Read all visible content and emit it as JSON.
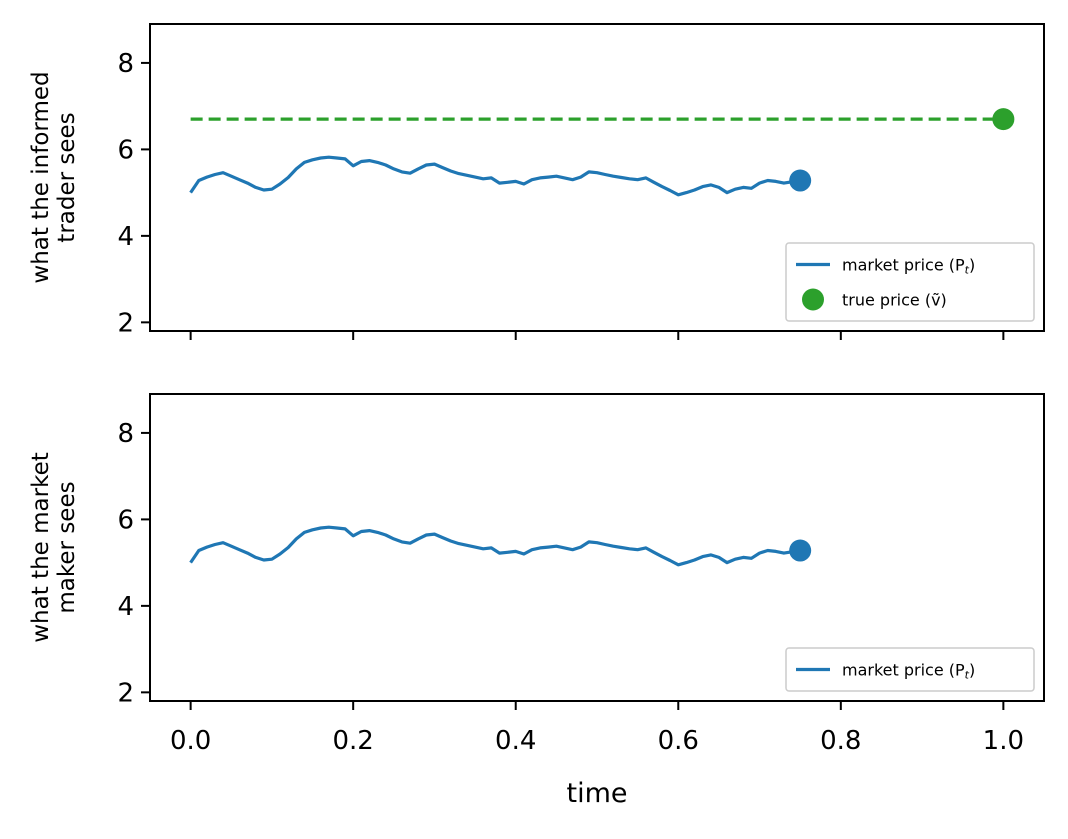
{
  "chart_data": [
    {
      "type": "line",
      "panel": "top",
      "ylabel_lines": [
        "what the informed",
        "trader sees"
      ],
      "xlabel": "",
      "ylim": [
        1.8,
        8.9
      ],
      "xlim": [
        -0.05,
        1.05
      ],
      "yticks": [
        2,
        4,
        6,
        8
      ],
      "ytick_labels": [
        "2",
        "4",
        "6",
        "8"
      ],
      "xticks": [
        0.0,
        0.2,
        0.4,
        0.6,
        0.8,
        1.0
      ],
      "xtick_labels": [],
      "grid": false,
      "legend_placement": "lower right",
      "colors": {
        "market": "#1f77b4",
        "true": "#2ca02c"
      },
      "series": [
        {
          "name": "market price (P_t)",
          "kind": "line",
          "x": [
            0.0,
            0.01,
            0.02,
            0.03,
            0.04,
            0.05,
            0.06,
            0.07,
            0.08,
            0.09,
            0.1,
            0.11,
            0.12,
            0.13,
            0.14,
            0.15,
            0.16,
            0.17,
            0.18,
            0.19,
            0.2,
            0.21,
            0.22,
            0.23,
            0.24,
            0.25,
            0.26,
            0.27,
            0.28,
            0.29,
            0.3,
            0.31,
            0.32,
            0.33,
            0.34,
            0.35,
            0.36,
            0.37,
            0.38,
            0.39,
            0.4,
            0.41,
            0.42,
            0.43,
            0.44,
            0.45,
            0.46,
            0.47,
            0.48,
            0.49,
            0.5,
            0.51,
            0.52,
            0.53,
            0.54,
            0.55,
            0.56,
            0.57,
            0.58,
            0.59,
            0.6,
            0.61,
            0.62,
            0.63,
            0.64,
            0.65,
            0.66,
            0.67,
            0.68,
            0.69,
            0.7,
            0.71,
            0.72,
            0.73,
            0.74,
            0.75
          ],
          "y": [
            5.0,
            5.28,
            5.36,
            5.42,
            5.46,
            5.38,
            5.3,
            5.22,
            5.12,
            5.06,
            5.08,
            5.2,
            5.35,
            5.55,
            5.7,
            5.76,
            5.8,
            5.82,
            5.8,
            5.78,
            5.62,
            5.72,
            5.74,
            5.7,
            5.64,
            5.55,
            5.48,
            5.45,
            5.55,
            5.64,
            5.66,
            5.58,
            5.5,
            5.44,
            5.4,
            5.36,
            5.32,
            5.34,
            5.22,
            5.24,
            5.26,
            5.2,
            5.3,
            5.34,
            5.36,
            5.38,
            5.34,
            5.3,
            5.36,
            5.48,
            5.46,
            5.42,
            5.38,
            5.35,
            5.32,
            5.3,
            5.34,
            5.24,
            5.14,
            5.05,
            4.95,
            5.0,
            5.06,
            5.14,
            5.18,
            5.12,
            5.0,
            5.08,
            5.12,
            5.1,
            5.22,
            5.28,
            5.26,
            5.22,
            5.25,
            5.28
          ]
        },
        {
          "name": "market price end",
          "kind": "marker",
          "x": [
            0.75
          ],
          "y": [
            5.28
          ]
        },
        {
          "name": "true price dashed",
          "kind": "dashed",
          "x": [
            0.0,
            1.0
          ],
          "y": [
            6.7,
            6.7
          ]
        },
        {
          "name": "true price (ṽ)",
          "kind": "marker",
          "x": [
            1.0
          ],
          "y": [
            6.7
          ]
        }
      ],
      "legend": [
        {
          "label": "market price (P",
          "sub": "t",
          "close": ")",
          "kind": "line",
          "color": "#1f77b4"
        },
        {
          "label": "true price (ṽ)",
          "kind": "marker",
          "color": "#2ca02c"
        }
      ]
    },
    {
      "type": "line",
      "panel": "bottom",
      "ylabel_lines": [
        "what the market",
        "maker sees"
      ],
      "xlabel": "time",
      "ylim": [
        1.8,
        8.9
      ],
      "xlim": [
        -0.05,
        1.05
      ],
      "yticks": [
        2,
        4,
        6,
        8
      ],
      "ytick_labels": [
        "2",
        "4",
        "6",
        "8"
      ],
      "xticks": [
        0.0,
        0.2,
        0.4,
        0.6,
        0.8,
        1.0
      ],
      "xtick_labels": [
        "0.0",
        "0.2",
        "0.4",
        "0.6",
        "0.8",
        "1.0"
      ],
      "grid": false,
      "legend_placement": "lower right",
      "colors": {
        "market": "#1f77b4"
      },
      "series": [
        {
          "name": "market price (P_t)",
          "kind": "line",
          "x": [
            0.0,
            0.01,
            0.02,
            0.03,
            0.04,
            0.05,
            0.06,
            0.07,
            0.08,
            0.09,
            0.1,
            0.11,
            0.12,
            0.13,
            0.14,
            0.15,
            0.16,
            0.17,
            0.18,
            0.19,
            0.2,
            0.21,
            0.22,
            0.23,
            0.24,
            0.25,
            0.26,
            0.27,
            0.28,
            0.29,
            0.3,
            0.31,
            0.32,
            0.33,
            0.34,
            0.35,
            0.36,
            0.37,
            0.38,
            0.39,
            0.4,
            0.41,
            0.42,
            0.43,
            0.44,
            0.45,
            0.46,
            0.47,
            0.48,
            0.49,
            0.5,
            0.51,
            0.52,
            0.53,
            0.54,
            0.55,
            0.56,
            0.57,
            0.58,
            0.59,
            0.6,
            0.61,
            0.62,
            0.63,
            0.64,
            0.65,
            0.66,
            0.67,
            0.68,
            0.69,
            0.7,
            0.71,
            0.72,
            0.73,
            0.74,
            0.75
          ],
          "y": [
            5.0,
            5.28,
            5.36,
            5.42,
            5.46,
            5.38,
            5.3,
            5.22,
            5.12,
            5.06,
            5.08,
            5.2,
            5.35,
            5.55,
            5.7,
            5.76,
            5.8,
            5.82,
            5.8,
            5.78,
            5.62,
            5.72,
            5.74,
            5.7,
            5.64,
            5.55,
            5.48,
            5.45,
            5.55,
            5.64,
            5.66,
            5.58,
            5.5,
            5.44,
            5.4,
            5.36,
            5.32,
            5.34,
            5.22,
            5.24,
            5.26,
            5.2,
            5.3,
            5.34,
            5.36,
            5.38,
            5.34,
            5.3,
            5.36,
            5.48,
            5.46,
            5.42,
            5.38,
            5.35,
            5.32,
            5.3,
            5.34,
            5.24,
            5.14,
            5.05,
            4.95,
            5.0,
            5.06,
            5.14,
            5.18,
            5.12,
            5.0,
            5.08,
            5.12,
            5.1,
            5.22,
            5.28,
            5.26,
            5.22,
            5.25,
            5.28
          ]
        },
        {
          "name": "market price end",
          "kind": "marker",
          "x": [
            0.75
          ],
          "y": [
            5.28
          ]
        }
      ],
      "legend": [
        {
          "label": "market price (P",
          "sub": "t",
          "close": ")",
          "kind": "line",
          "color": "#1f77b4"
        }
      ]
    }
  ]
}
